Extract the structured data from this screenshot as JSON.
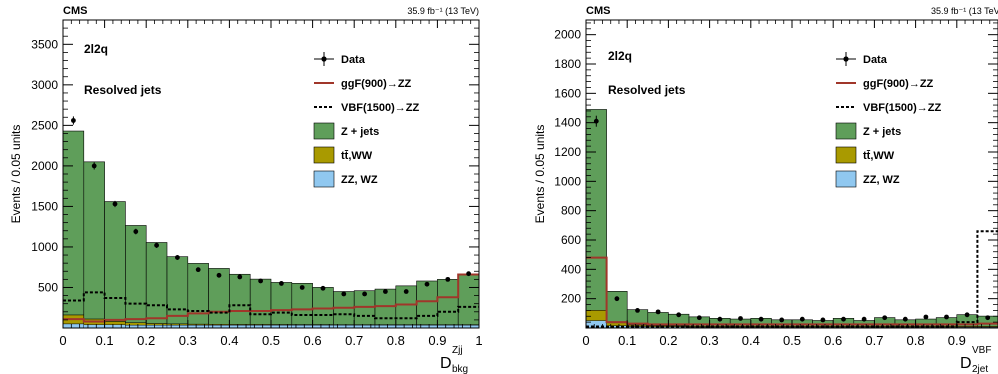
{
  "colors": {
    "zjets": "#5f9e5a",
    "ttww": "#a99a00",
    "zzwz": "#90c8f0",
    "ggf": "#a0362a",
    "vbf": "#000000",
    "data": "#000000"
  },
  "legend_items": [
    {
      "label": "Data",
      "kind": "data"
    },
    {
      "label": "ggF(900)→ZZ",
      "kind": "ggf"
    },
    {
      "label": "VBF(1500)→ZZ",
      "kind": "vbf"
    },
    {
      "label": "Z + jets",
      "kind": "zjets"
    },
    {
      "label": "tt̄,WW",
      "kind": "ttww"
    },
    {
      "label": "ZZ, WZ",
      "kind": "zzwz"
    }
  ],
  "chart_data": [
    {
      "type": "bar",
      "experiment": "CMS",
      "lumi": "35.9 fb⁻¹ (13 TeV)",
      "channel": "2l2q",
      "category": "Resolved jets",
      "ylabel": "Events / 0.05 units",
      "xlabel": "D",
      "xlabel_sup": "Zjj",
      "xlabel_sub": "bkg",
      "xlim": [
        0,
        1
      ],
      "ylim": [
        0,
        3800
      ],
      "xticks": [
        "0",
        "0.1",
        "0.2",
        "0.3",
        "0.4",
        "0.5",
        "0.6",
        "0.7",
        "0.8",
        "0.9",
        "1"
      ],
      "yticks": [
        500,
        1000,
        1500,
        2000,
        2500,
        3000,
        3500
      ],
      "bin_edges": [
        0,
        0.05,
        0.1,
        0.15,
        0.2,
        0.25,
        0.3,
        0.35,
        0.4,
        0.45,
        0.5,
        0.55,
        0.6,
        0.65,
        0.7,
        0.75,
        0.8,
        0.85,
        0.9,
        0.95,
        1.0
      ],
      "series": [
        {
          "name": "ZZ, WZ",
          "values": [
            50,
            40,
            40,
            35,
            35,
            35,
            35,
            35,
            35,
            35,
            35,
            35,
            35,
            35,
            35,
            35,
            35,
            35,
            35,
            35
          ]
        },
        {
          "name": "tt̄,WW",
          "values": [
            110,
            70,
            40,
            30,
            20,
            15,
            12,
            10,
            8,
            8,
            7,
            6,
            6,
            5,
            5,
            5,
            5,
            5,
            5,
            5
          ]
        },
        {
          "name": "Z + jets",
          "values": [
            2270,
            1940,
            1480,
            1200,
            1000,
            830,
            750,
            690,
            620,
            560,
            520,
            510,
            460,
            410,
            420,
            440,
            480,
            540,
            560,
            620
          ]
        },
        {
          "name": "ggF(900)→ZZ",
          "values": [
            110,
            80,
            100,
            110,
            120,
            150,
            180,
            200,
            210,
            210,
            220,
            230,
            240,
            250,
            260,
            270,
            290,
            330,
            380,
            660
          ]
        },
        {
          "name": "VBF(1500)→ZZ",
          "values": [
            340,
            440,
            370,
            300,
            280,
            230,
            210,
            190,
            280,
            170,
            190,
            160,
            160,
            170,
            150,
            120,
            120,
            150,
            200,
            260
          ]
        },
        {
          "name": "Data",
          "values": [
            2560,
            2000,
            1530,
            1190,
            1020,
            870,
            720,
            650,
            630,
            580,
            550,
            500,
            490,
            420,
            420,
            450,
            450,
            540,
            600,
            670
          ]
        }
      ]
    },
    {
      "type": "bar",
      "experiment": "CMS",
      "lumi": "35.9 fb⁻¹ (13 TeV)",
      "channel": "2l2q",
      "category": "Resolved jets",
      "ylabel": "Events / 0.05 units",
      "xlabel": "D",
      "xlabel_sup": "VBF",
      "xlabel_sub": "2jet",
      "xlim": [
        0,
        1
      ],
      "ylim": [
        0,
        2100
      ],
      "xticks": [
        "0",
        "0.1",
        "0.2",
        "0.3",
        "0.4",
        "0.5",
        "0.6",
        "0.7",
        "0.8",
        "0.9"
      ],
      "yticks": [
        200,
        400,
        600,
        800,
        1000,
        1200,
        1400,
        1600,
        1800,
        2000
      ],
      "bin_edges": [
        0,
        0.05,
        0.1,
        0.15,
        0.2,
        0.25,
        0.3,
        0.35,
        0.4,
        0.45,
        0.5,
        0.55,
        0.6,
        0.65,
        0.7,
        0.75,
        0.8,
        0.85,
        0.9,
        0.95,
        1.0
      ],
      "series": [
        {
          "name": "ZZ, WZ",
          "values": [
            50,
            15,
            10,
            8,
            8,
            6,
            6,
            6,
            6,
            6,
            6,
            6,
            6,
            6,
            6,
            6,
            6,
            6,
            6,
            6
          ]
        },
        {
          "name": "tt̄,WW",
          "values": [
            70,
            20,
            10,
            8,
            6,
            5,
            5,
            5,
            5,
            5,
            5,
            5,
            5,
            5,
            5,
            5,
            5,
            5,
            5,
            5
          ]
        },
        {
          "name": "Z + jets",
          "values": [
            1370,
            215,
            105,
            90,
            80,
            65,
            55,
            50,
            55,
            45,
            45,
            40,
            55,
            40,
            60,
            45,
            50,
            60,
            80,
            70
          ]
        },
        {
          "name": "ggF(900)→ZZ",
          "values": [
            480,
            40,
            30,
            25,
            25,
            25,
            25,
            25,
            25,
            25,
            25,
            25,
            25,
            25,
            25,
            25,
            25,
            25,
            25,
            30
          ]
        },
        {
          "name": "VBF(1500)→ZZ",
          "values": [
            10,
            10,
            10,
            10,
            10,
            10,
            10,
            10,
            10,
            10,
            10,
            10,
            10,
            10,
            10,
            10,
            10,
            10,
            40,
            660
          ]
        },
        {
          "name": "Data",
          "values": [
            1410,
            200,
            120,
            110,
            90,
            70,
            60,
            65,
            60,
            55,
            60,
            55,
            60,
            60,
            70,
            60,
            75,
            75,
            90,
            70
          ]
        }
      ]
    }
  ]
}
